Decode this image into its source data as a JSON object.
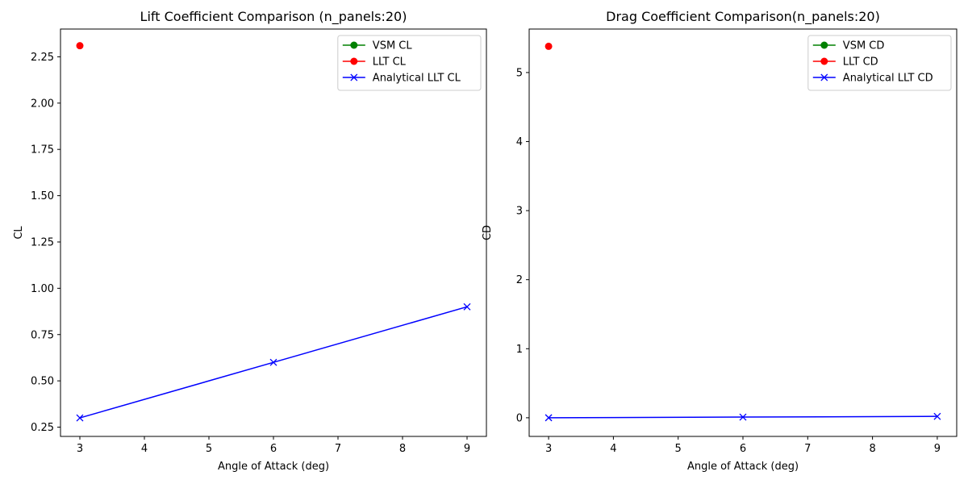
{
  "chart_data": [
    {
      "type": "line",
      "title": "Lift Coefficient Comparison (n_panels:20)",
      "xlabel": "Angle of Attack (deg)",
      "ylabel": "CL",
      "xlim": [
        2.7,
        9.3
      ],
      "ylim": [
        0.2,
        2.4
      ],
      "x_ticks": [
        3,
        4,
        5,
        6,
        7,
        8,
        9
      ],
      "y_ticks": [
        0.25,
        0.5,
        0.75,
        1.0,
        1.25,
        1.5,
        1.75,
        2.0,
        2.25
      ],
      "y_tick_labels": [
        "0.25",
        "0.50",
        "0.75",
        "1.00",
        "1.25",
        "1.50",
        "1.75",
        "2.00",
        "2.25"
      ],
      "legend_position": "top-right",
      "grid": false,
      "series": [
        {
          "name": "VSM CL",
          "color": "#008000",
          "marker": "circle",
          "x": [],
          "y": []
        },
        {
          "name": "LLT CL",
          "color": "#ff0000",
          "marker": "circle",
          "x": [
            3
          ],
          "y": [
            2.31
          ]
        },
        {
          "name": "Analytical LLT CL",
          "color": "#0000ff",
          "marker": "x",
          "x": [
            3,
            6,
            9
          ],
          "y": [
            0.3,
            0.6,
            0.9
          ]
        }
      ]
    },
    {
      "type": "line",
      "title": "Drag Coefficient Comparison(n_panels:20)",
      "xlabel": "Angle of Attack (deg)",
      "ylabel": "CD",
      "xlim": [
        2.7,
        9.3
      ],
      "ylim": [
        -0.27,
        5.63
      ],
      "x_ticks": [
        3,
        4,
        5,
        6,
        7,
        8,
        9
      ],
      "y_ticks": [
        0,
        1,
        2,
        3,
        4,
        5
      ],
      "y_tick_labels": [
        "0",
        "1",
        "2",
        "3",
        "4",
        "5"
      ],
      "legend_position": "top-right",
      "grid": false,
      "series": [
        {
          "name": "VSM CD",
          "color": "#008000",
          "marker": "circle",
          "x": [],
          "y": []
        },
        {
          "name": "LLT CD",
          "color": "#ff0000",
          "marker": "circle",
          "x": [
            3
          ],
          "y": [
            5.38
          ]
        },
        {
          "name": "Analytical LLT CD",
          "color": "#0000ff",
          "marker": "x",
          "x": [
            3,
            6,
            9
          ],
          "y": [
            0.0,
            0.01,
            0.02
          ]
        }
      ]
    }
  ]
}
